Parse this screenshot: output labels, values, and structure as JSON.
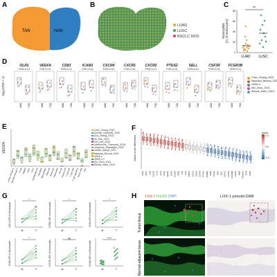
{
  "panels": {
    "A": {
      "label": "A",
      "clusters": [
        {
          "name": "TAN",
          "color": "#f39a34"
        },
        {
          "name": "NAN",
          "color": "#2f7fc1"
        }
      ]
    },
    "B": {
      "label": "B",
      "legend": [
        {
          "name": "LUAD",
          "color": "#f0a23a"
        },
        {
          "name": "LUSC",
          "color": "#41a35c"
        },
        {
          "name": "NSCLC NOS",
          "color": "#d9413a"
        }
      ]
    },
    "C": {
      "label": "C",
      "ylabel": "Neutrophils\n[% of leukocytes]",
      "yticks": [
        "0",
        "20",
        "40",
        "60",
        "80"
      ],
      "categories": [
        "LUAD",
        "LUSC"
      ],
      "significance": "**"
    },
    "D": {
      "label": "D",
      "ylabel": "log₂(CPM + 1)",
      "genes": [
        {
          "name": "OLR1",
          "fdr": "FDR<0.01"
        },
        {
          "name": "VEGFA",
          "fdr": "FDR<0.01"
        },
        {
          "name": "CD83",
          "fdr": "FDR<0.01"
        },
        {
          "name": "ICAM1",
          "fdr": "FDR<0.01"
        },
        {
          "name": "CXCR4",
          "fdr": "FDR<0.01"
        },
        {
          "name": "CXCR1",
          "fdr": "FDR<0.01"
        },
        {
          "name": "CXCR2",
          "fdr": "FDR<0.01"
        },
        {
          "name": "PTGS2",
          "fdr": "FDR<0.01"
        },
        {
          "name": "SELL",
          "fdr": "FDR<0.01"
        },
        {
          "name": "CSF3R",
          "fdr": "FDR<0.01"
        },
        {
          "name": "FCGR3B",
          "fdr": "FDR<0.01"
        }
      ],
      "xcats": [
        "NAN",
        "TAN"
      ],
      "legend": [
        {
          "name": "Chen_Zhang_2020",
          "color": "#e6a03a"
        },
        {
          "name": "Maynard_Bivona_2020",
          "color": "#a8733a"
        },
        {
          "name": "UKIM-V",
          "color": "#7c6bb0"
        },
        {
          "name": "Wu_Zhou_2021",
          "color": "#d94d8c"
        },
        {
          "name": "Zilionis_Klein_2019",
          "color": "#6a8fcf"
        }
      ]
    },
    "E": {
      "label": "E",
      "ylabel": "VEGFA",
      "legend": [
        "Chen_Zhang_2020",
        "Goveia_Carmeliet_2020",
        "Guo_Zhang_2018",
        "He_Fan_2021",
        "Kim_Lee_2020",
        "Lambrechts_Thienpont_2018",
        "Laughney_Massague_2020",
        "Leader_Merad_2021",
        "Maynard_Bivona_2020",
        "UKIM-V",
        "UKIM-V-2",
        "Wu_Zhou_2021",
        "Zilionis_Klein_2019"
      ],
      "xcats": [
        "Alveolar cell type 1",
        "Alveolar cell type 2",
        "B cell",
        "Ciliated",
        "cDC1",
        "cDC2",
        "Endothelial cell",
        "Fibroblast",
        "Macrophage",
        "Mast cell",
        "Monocyte",
        "Neutrophils",
        "NK cell",
        "Plasma cell",
        "T cell CD4",
        "T cell CD8",
        "T cell regulatory",
        "Tumor cells",
        "pDC"
      ]
    },
    "F": {
      "label": "F",
      "ylabel": "Mean score difference",
      "colorbar_title": "mean",
      "colorbar_ticks": [
        "0.2",
        "0.0",
        "-0.2"
      ],
      "genes": [
        "CSF3",
        "SPP1",
        "IL1B",
        "CXCL8",
        "CCL3",
        "CCL4",
        "PLAU",
        "VEGFA",
        "OLR1",
        "PLAUR",
        "CD83",
        "TNF",
        "IL1A",
        "THBS1",
        "CXCL2",
        "ICAM1",
        "CXCR4",
        "PTGS2",
        "NFKBIA",
        "SOD2",
        "CCL20",
        "IER3",
        "SELL",
        "CXCR1",
        "CXCR2",
        "FCGR3B",
        "CSF3R",
        "MME",
        "S100A12",
        "TLR4",
        "AQP9"
      ]
    },
    "G": {
      "label": "G",
      "subplots": [
        {
          "ylabel": "LOX-1 MFI on Neutrophils",
          "sig": "*",
          "x": [
            "N",
            "T"
          ]
        },
        {
          "ylabel": "CD62L MFI on Neutrophils",
          "sig": "*",
          "x": [
            "N",
            "T"
          ]
        },
        {
          "ylabel": "CD54 MFI on Neutrophils",
          "sig": "*",
          "x": [
            "N",
            "T"
          ]
        },
        {
          "ylabel": "CD16 MFI on Neutrophils",
          "sig": "*",
          "x": [
            "N",
            "T"
          ]
        },
        {
          "ylabel": "CXCR2 MFI on Neutrophils",
          "sig": "ns",
          "x": [
            "N",
            "T"
          ]
        },
        {
          "ylabel": "CD184 MFI on Neutrophils",
          "sig": "****",
          "x": [
            "N",
            "T"
          ]
        }
      ]
    },
    "H": {
      "label": "H",
      "left_header": [
        "LOX-1",
        "PanCK",
        "DAPI"
      ],
      "left_header_colors": [
        "#e0403a",
        "#3fc24a",
        "#5a7de8"
      ],
      "right_header": "LOX-1 pseudo-DAB",
      "rows": [
        "Tumor tissue",
        "Normal-adjacent tissue"
      ]
    }
  }
}
